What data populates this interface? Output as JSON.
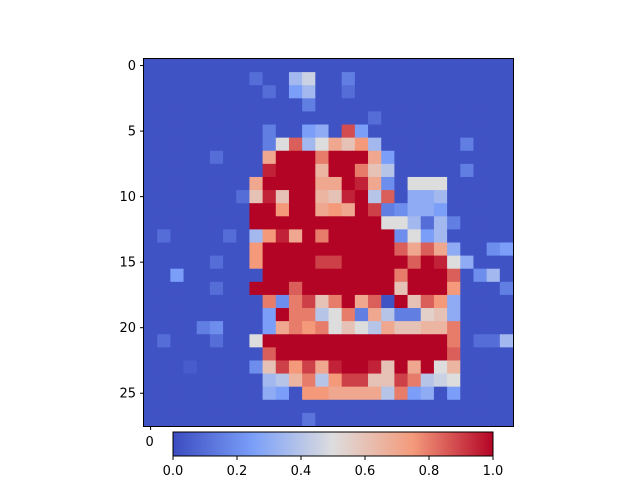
{
  "chart_data": {
    "type": "heatmap",
    "title": "",
    "xlabel": "",
    "ylabel": "",
    "colormap": "coolwarm",
    "colors": {
      "low": "#3b4cc0",
      "mid": "#dddddd",
      "high": "#b40426"
    },
    "vmin": 0.0,
    "vmax": 1.0,
    "rows": 28,
    "cols": 28,
    "y_ticks": [
      "0",
      "5",
      "10",
      "15",
      "20",
      "25"
    ],
    "x_ticks": [
      "0"
    ],
    "colorbar_ticks": [
      "0.0",
      "0.2",
      "0.4",
      "0.6",
      "0.8",
      "1.0"
    ],
    "values": [
      [
        0.02,
        0.02,
        0.02,
        0.02,
        0.02,
        0.02,
        0.02,
        0.02,
        0.02,
        0.02,
        0.02,
        0.02,
        0.02,
        0.02,
        0.02,
        0.02,
        0.02,
        0.02,
        0.02,
        0.02,
        0.02,
        0.02,
        0.02,
        0.02,
        0.02,
        0.02,
        0.02,
        0.02
      ],
      [
        0.02,
        0.02,
        0.02,
        0.02,
        0.02,
        0.02,
        0.02,
        0.02,
        0.1,
        0.02,
        0.02,
        0.35,
        0.45,
        0.02,
        0.02,
        0.15,
        0.02,
        0.02,
        0.02,
        0.02,
        0.02,
        0.02,
        0.02,
        0.02,
        0.02,
        0.02,
        0.02,
        0.02
      ],
      [
        0.02,
        0.02,
        0.02,
        0.02,
        0.02,
        0.02,
        0.02,
        0.02,
        0.02,
        0.1,
        0.02,
        0.25,
        0.35,
        0.02,
        0.02,
        0.1,
        0.02,
        0.02,
        0.02,
        0.02,
        0.02,
        0.02,
        0.02,
        0.02,
        0.02,
        0.02,
        0.02,
        0.02
      ],
      [
        0.02,
        0.02,
        0.02,
        0.02,
        0.02,
        0.02,
        0.02,
        0.02,
        0.02,
        0.02,
        0.02,
        0.02,
        0.15,
        0.02,
        0.02,
        0.02,
        0.02,
        0.02,
        0.02,
        0.02,
        0.02,
        0.02,
        0.02,
        0.02,
        0.02,
        0.02,
        0.02,
        0.02
      ],
      [
        0.02,
        0.02,
        0.02,
        0.02,
        0.02,
        0.02,
        0.02,
        0.02,
        0.02,
        0.02,
        0.02,
        0.02,
        0.02,
        0.02,
        0.02,
        0.02,
        0.02,
        0.1,
        0.02,
        0.02,
        0.02,
        0.02,
        0.02,
        0.02,
        0.02,
        0.02,
        0.02,
        0.02
      ],
      [
        0.02,
        0.02,
        0.02,
        0.02,
        0.02,
        0.02,
        0.02,
        0.02,
        0.02,
        0.15,
        0.02,
        0.02,
        0.25,
        0.3,
        0.02,
        0.88,
        0.25,
        0.02,
        0.02,
        0.02,
        0.02,
        0.02,
        0.02,
        0.02,
        0.02,
        0.02,
        0.02,
        0.02
      ],
      [
        0.02,
        0.02,
        0.02,
        0.02,
        0.02,
        0.02,
        0.02,
        0.02,
        0.02,
        0.15,
        0.5,
        0.85,
        0.35,
        0.5,
        0.7,
        0.6,
        0.75,
        0.35,
        0.02,
        0.02,
        0.02,
        0.02,
        0.02,
        0.02,
        0.15,
        0.02,
        0.02,
        0.02
      ],
      [
        0.02,
        0.02,
        0.02,
        0.02,
        0.02,
        0.1,
        0.02,
        0.02,
        0.02,
        0.7,
        1.0,
        1.0,
        1.0,
        0.8,
        1.0,
        1.0,
        1.0,
        0.7,
        0.25,
        0.02,
        0.02,
        0.02,
        0.02,
        0.02,
        0.02,
        0.02,
        0.02,
        0.02
      ],
      [
        0.02,
        0.02,
        0.02,
        0.02,
        0.02,
        0.02,
        0.02,
        0.02,
        0.02,
        0.95,
        1.0,
        1.0,
        1.0,
        0.65,
        1.0,
        1.0,
        0.8,
        0.6,
        0.4,
        0.02,
        0.02,
        0.02,
        0.02,
        0.02,
        0.15,
        0.02,
        0.02,
        0.02
      ],
      [
        0.02,
        0.02,
        0.02,
        0.02,
        0.02,
        0.02,
        0.02,
        0.02,
        0.7,
        1.0,
        1.0,
        1.0,
        1.0,
        0.7,
        0.7,
        1.0,
        0.95,
        0.7,
        0.2,
        0.02,
        0.5,
        0.5,
        0.5,
        0.02,
        0.02,
        0.02,
        0.02,
        0.02
      ],
      [
        0.02,
        0.02,
        0.02,
        0.02,
        0.02,
        0.02,
        0.02,
        0.1,
        0.6,
        0.95,
        0.6,
        1.0,
        1.0,
        0.65,
        0.6,
        0.95,
        1.0,
        0.4,
        0.85,
        0.02,
        0.3,
        0.3,
        0.35,
        0.02,
        0.02,
        0.02,
        0.02,
        0.02
      ],
      [
        0.02,
        0.02,
        0.02,
        0.02,
        0.02,
        0.02,
        0.02,
        0.02,
        1.0,
        1.0,
        0.75,
        1.0,
        1.0,
        0.7,
        0.75,
        0.7,
        1.0,
        0.9,
        0.15,
        0.2,
        0.3,
        0.3,
        0.25,
        0.02,
        0.02,
        0.02,
        0.02,
        0.02
      ],
      [
        0.02,
        0.02,
        0.02,
        0.02,
        0.02,
        0.02,
        0.02,
        0.02,
        1.0,
        1.0,
        1.0,
        1.0,
        1.0,
        1.0,
        1.0,
        1.0,
        1.0,
        1.0,
        0.5,
        0.5,
        0.35,
        0.1,
        0.35,
        0.15,
        0.02,
        0.02,
        0.02,
        0.02
      ],
      [
        0.02,
        0.1,
        0.02,
        0.02,
        0.02,
        0.02,
        0.1,
        0.02,
        0.35,
        0.75,
        0.95,
        0.7,
        1.0,
        0.8,
        1.0,
        1.0,
        1.0,
        1.0,
        1.0,
        0.2,
        0.5,
        0.25,
        0.35,
        0.02,
        0.02,
        0.02,
        0.02,
        0.02
      ],
      [
        0.02,
        0.02,
        0.02,
        0.02,
        0.02,
        0.02,
        0.02,
        0.02,
        0.75,
        1.0,
        1.0,
        1.0,
        1.0,
        1.0,
        1.0,
        1.0,
        1.0,
        1.0,
        1.0,
        0.85,
        0.7,
        0.85,
        0.7,
        0.3,
        0.02,
        0.02,
        0.2,
        0.25
      ],
      [
        0.02,
        0.02,
        0.02,
        0.02,
        0.02,
        0.1,
        0.02,
        0.02,
        0.75,
        1.0,
        1.0,
        1.0,
        1.0,
        0.9,
        0.9,
        1.0,
        1.0,
        1.0,
        1.0,
        1.0,
        0.85,
        1.0,
        0.95,
        0.5,
        0.3,
        0.02,
        0.02,
        0.02
      ],
      [
        0.02,
        0.02,
        0.25,
        0.02,
        0.02,
        0.02,
        0.02,
        0.02,
        0.02,
        1.0,
        1.0,
        1.0,
        1.0,
        1.0,
        1.0,
        1.0,
        1.0,
        1.0,
        1.0,
        0.8,
        1.0,
        1.0,
        1.0,
        0.85,
        0.02,
        0.2,
        0.35,
        0.02
      ],
      [
        0.02,
        0.02,
        0.02,
        0.02,
        0.02,
        0.1,
        0.02,
        0.02,
        1.0,
        1.0,
        1.0,
        0.85,
        1.0,
        1.0,
        1.0,
        1.0,
        1.0,
        1.0,
        1.0,
        0.6,
        1.0,
        1.0,
        1.0,
        0.75,
        0.02,
        0.02,
        0.02,
        0.15
      ],
      [
        0.02,
        0.02,
        0.02,
        0.02,
        0.02,
        0.02,
        0.02,
        0.02,
        0.02,
        0.8,
        0.2,
        0.8,
        0.9,
        0.6,
        0.8,
        1.0,
        0.7,
        0.85,
        0.02,
        1.0,
        0.6,
        0.85,
        0.75,
        0.3,
        0.02,
        0.02,
        0.02,
        0.02
      ],
      [
        0.02,
        0.02,
        0.02,
        0.02,
        0.02,
        0.02,
        0.02,
        0.02,
        0.02,
        0.25,
        1.0,
        0.8,
        0.8,
        0.4,
        0.5,
        0.8,
        0.15,
        0.7,
        0.4,
        0.15,
        0.15,
        0.55,
        0.6,
        0.3,
        0.02,
        0.02,
        0.02,
        0.02
      ],
      [
        0.02,
        0.02,
        0.02,
        0.02,
        0.15,
        0.2,
        0.02,
        0.02,
        0.02,
        0.25,
        0.7,
        0.8,
        0.75,
        0.8,
        0.5,
        0.6,
        0.5,
        0.4,
        0.7,
        0.6,
        0.6,
        0.65,
        0.65,
        0.8,
        0.02,
        0.02,
        0.02,
        0.02
      ],
      [
        0.02,
        0.1,
        0.02,
        0.02,
        0.02,
        0.1,
        0.02,
        0.02,
        0.5,
        1.0,
        1.0,
        1.0,
        1.0,
        1.0,
        1.0,
        1.0,
        1.0,
        1.0,
        1.0,
        1.0,
        1.0,
        1.0,
        1.0,
        0.8,
        0.02,
        0.1,
        0.1,
        0.35
      ],
      [
        0.02,
        0.02,
        0.02,
        0.02,
        0.02,
        0.02,
        0.02,
        0.02,
        0.02,
        0.85,
        1.0,
        1.0,
        1.0,
        1.0,
        1.0,
        1.0,
        1.0,
        1.0,
        1.0,
        1.0,
        1.0,
        1.0,
        1.0,
        0.85,
        0.02,
        0.02,
        0.02,
        0.02
      ],
      [
        0.02,
        0.02,
        0.02,
        0.05,
        0.02,
        0.02,
        0.02,
        0.02,
        0.2,
        0.6,
        0.9,
        0.75,
        0.9,
        0.7,
        0.95,
        1.0,
        1.0,
        0.95,
        0.6,
        1.0,
        0.7,
        1.0,
        0.5,
        0.65,
        0.02,
        0.02,
        0.02,
        0.02
      ],
      [
        0.02,
        0.02,
        0.02,
        0.02,
        0.02,
        0.02,
        0.02,
        0.02,
        0.02,
        0.35,
        0.4,
        0.65,
        0.8,
        0.4,
        0.75,
        0.9,
        0.9,
        0.6,
        0.6,
        0.9,
        0.8,
        0.4,
        0.45,
        0.5,
        0.02,
        0.02,
        0.02,
        0.02
      ],
      [
        0.02,
        0.02,
        0.02,
        0.02,
        0.02,
        0.02,
        0.02,
        0.02,
        0.02,
        0.3,
        0.25,
        0.02,
        0.75,
        0.75,
        0.7,
        0.7,
        0.7,
        0.7,
        0.4,
        0.8,
        0.25,
        0.3,
        0.02,
        0.25,
        0.02,
        0.02,
        0.02,
        0.02
      ],
      [
        0.02,
        0.02,
        0.02,
        0.02,
        0.02,
        0.02,
        0.02,
        0.02,
        0.02,
        0.02,
        0.02,
        0.02,
        0.02,
        0.02,
        0.02,
        0.02,
        0.02,
        0.02,
        0.02,
        0.02,
        0.02,
        0.02,
        0.02,
        0.02,
        0.02,
        0.02,
        0.02,
        0.02
      ],
      [
        0.02,
        0.02,
        0.02,
        0.02,
        0.02,
        0.02,
        0.02,
        0.02,
        0.02,
        0.02,
        0.02,
        0.02,
        0.12,
        0.02,
        0.02,
        0.02,
        0.02,
        0.02,
        0.02,
        0.02,
        0.02,
        0.02,
        0.02,
        0.02,
        0.02,
        0.02,
        0.02,
        0.02
      ]
    ]
  }
}
